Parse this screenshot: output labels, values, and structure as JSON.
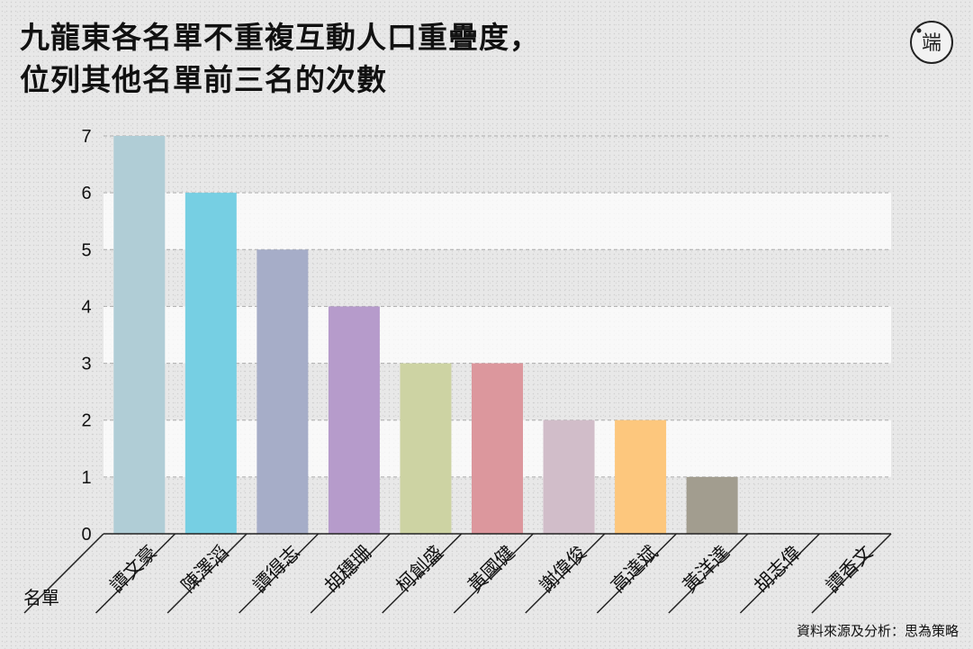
{
  "title_lines": [
    "九龍東各名單不重複互動人口重疊度，",
    "位列其他名單前三名的次數"
  ],
  "source": "資料來源及分析：思為策略",
  "logo": {
    "icon": "端-logo",
    "text": "端"
  },
  "chart_data": {
    "type": "bar",
    "title": "九龍東各名單不重複互動人口重疊度，位列其他名單前三名的次數",
    "xlabel": "名單",
    "ylabel": "",
    "ylim": [
      0,
      7
    ],
    "yticks": [
      0,
      1,
      2,
      3,
      4,
      5,
      6,
      7
    ],
    "grid": true,
    "categories": [
      "譚文豪",
      "陳澤滔",
      "譚得志",
      "胡穗珊",
      "柯創盛",
      "黃國健",
      "謝偉俊",
      "高達斌",
      "黃洋達",
      "胡志偉",
      "譚香文"
    ],
    "values": [
      7,
      6,
      5,
      4,
      3,
      3,
      2,
      2,
      1,
      0,
      0
    ],
    "colors": [
      "#b0cdd6",
      "#76cfe3",
      "#a6adc8",
      "#b69bcb",
      "#cdd3a3",
      "#dc979d",
      "#d1bdc9",
      "#fdc77d",
      "#a29d8f",
      "#9d9d9d",
      "#9d9d9d"
    ]
  }
}
